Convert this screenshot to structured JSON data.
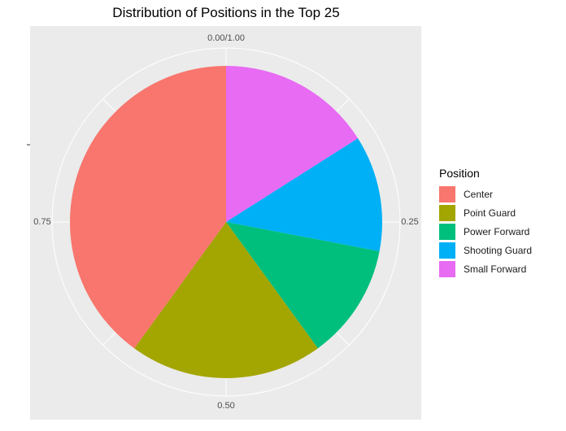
{
  "chart_data": {
    "type": "pie",
    "title": "Distribution of Positions in the Top 25",
    "legend_title": "Position",
    "legend_position": "right",
    "categories": [
      "Center",
      "Point Guard",
      "Power Forward",
      "Shooting Guard",
      "Small Forward"
    ],
    "values": [
      0.4,
      0.2,
      0.12,
      0.12,
      0.16
    ],
    "colors": [
      "#F8766D",
      "#A3A500",
      "#00BF7D",
      "#00B0F6",
      "#E76BF3"
    ],
    "theta_ticks": [
      {
        "value": 0.0,
        "label": "0.00/1.00"
      },
      {
        "value": 0.25,
        "label": "0.25"
      },
      {
        "value": 0.5,
        "label": "0.50"
      },
      {
        "value": 0.75,
        "label": "0.75"
      }
    ],
    "panel_background": "#EBEBEB",
    "grid_color": "#FFFFFF",
    "grid": true
  }
}
